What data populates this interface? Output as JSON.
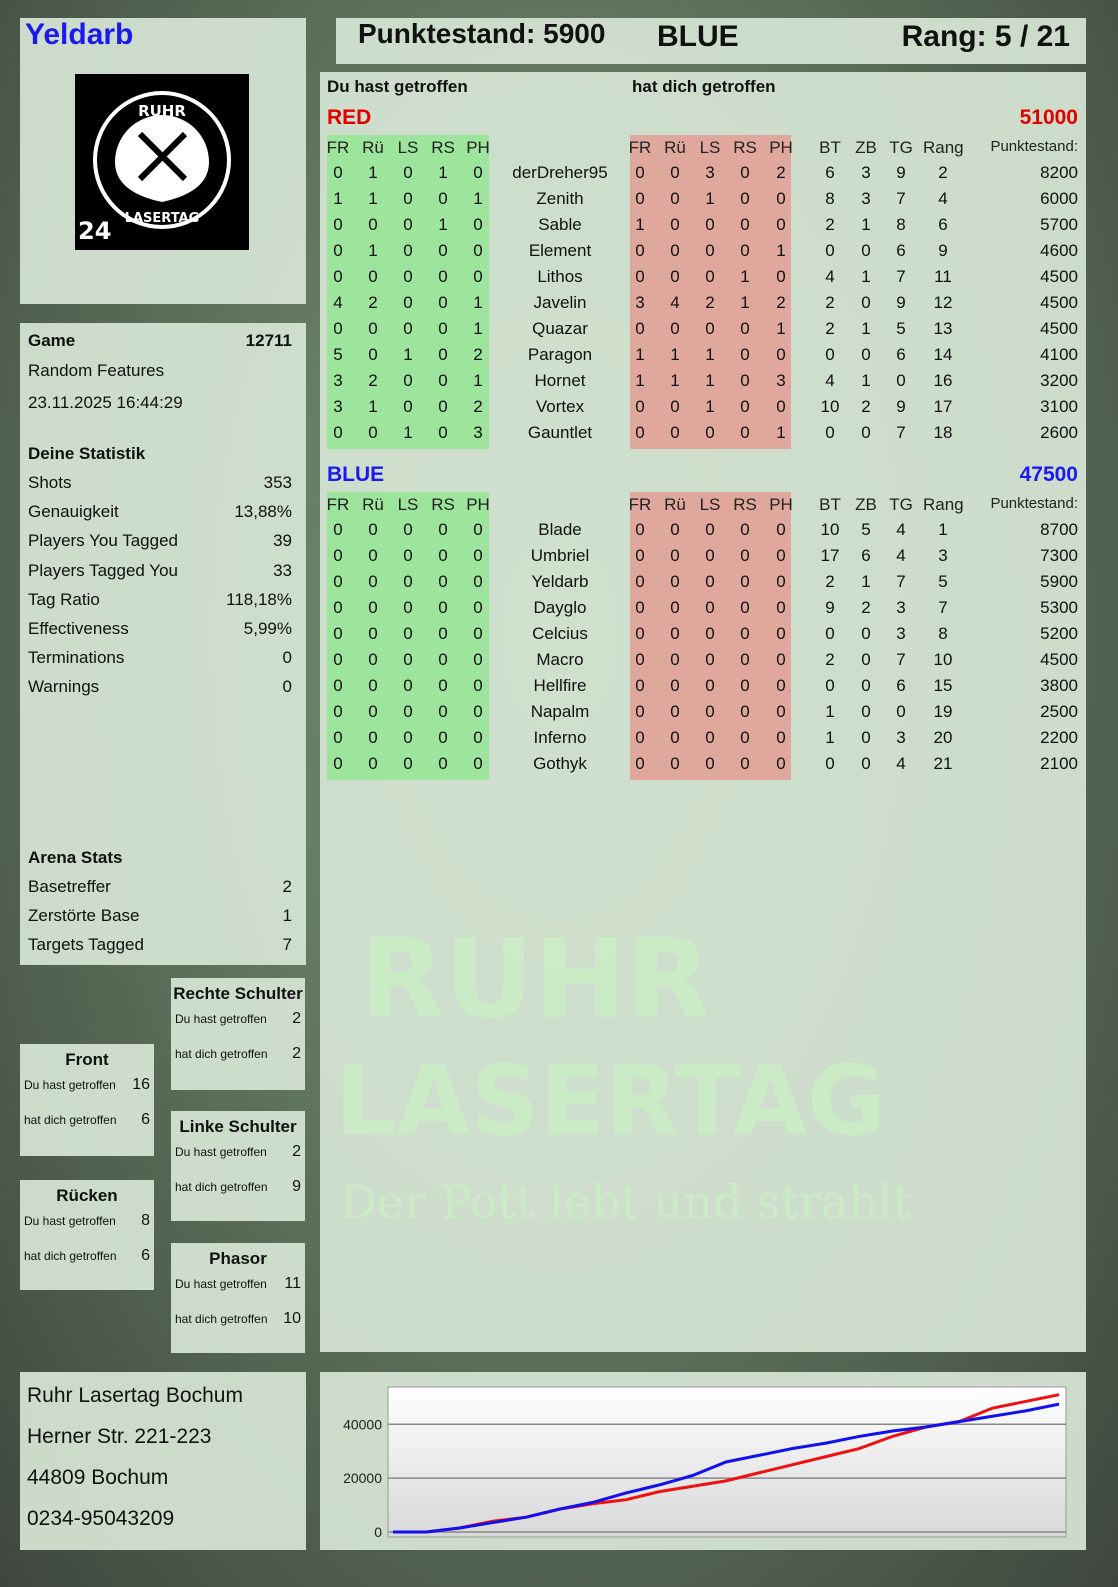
{
  "header": {
    "player": "Yeldarb",
    "score_label": "Punktestand: 5900",
    "team": "BLUE",
    "rank_label": "Rang: 5 / 21"
  },
  "logo": {
    "text": "RUHR LASERTAG",
    "badge": "24"
  },
  "game": {
    "label": "Game",
    "id": "12711",
    "mode": "Random Features",
    "datetime": "23.11.2025 16:44:29"
  },
  "stats": {
    "title": "Deine Statistik",
    "items": [
      {
        "label": "Shots",
        "value": "353"
      },
      {
        "label": "Genauigkeit",
        "value": "13,88%"
      },
      {
        "label": "Players You Tagged",
        "value": "39"
      },
      {
        "label": "Players Tagged You",
        "value": "33"
      },
      {
        "label": "Tag Ratio",
        "value": "118,18%"
      },
      {
        "label": "Effectiveness",
        "value": "5,99%"
      },
      {
        "label": "Terminations",
        "value": "0"
      },
      {
        "label": "Warnings",
        "value": "0"
      }
    ]
  },
  "arena": {
    "title": "Arena Stats",
    "items": [
      {
        "label": "Basetreffer",
        "value": "2"
      },
      {
        "label": "Zerstörte Base",
        "value": "1"
      },
      {
        "label": "Targets Tagged",
        "value": "7"
      }
    ]
  },
  "bodyparts": [
    {
      "title": "Front",
      "hit": "16",
      "got": "6"
    },
    {
      "title": "Rücken",
      "hit": "8",
      "got": "6"
    },
    {
      "title": "Rechte Schulter",
      "hit": "2",
      "got": "2"
    },
    {
      "title": "Linke Schulter",
      "hit": "2",
      "got": "9"
    },
    {
      "title": "Phasor",
      "hit": "11",
      "got": "10"
    }
  ],
  "bp_labels": {
    "hit": "Du hast getroffen",
    "got": "hat dich getroffen"
  },
  "table": {
    "you_hit": "Du hast getroffen",
    "hit_you": "hat dich getroffen",
    "cols_hit": [
      "FR",
      "Rü",
      "LS",
      "RS",
      "PH"
    ],
    "cols_stats": [
      "BT",
      "ZB",
      "TG",
      "Rang",
      "Punktestand:"
    ],
    "teams": [
      {
        "name": "RED",
        "score": "51000",
        "color": "#e00000",
        "players": [
          {
            "name": "derDreher95",
            "you": [
              0,
              1,
              0,
              1,
              0
            ],
            "them": [
              0,
              0,
              3,
              0,
              2
            ],
            "bt": 6,
            "zb": 3,
            "tg": 9,
            "rang": 2,
            "pts": 8200
          },
          {
            "name": "Zenith",
            "you": [
              1,
              1,
              0,
              0,
              1
            ],
            "them": [
              0,
              0,
              1,
              0,
              0
            ],
            "bt": 8,
            "zb": 3,
            "tg": 7,
            "rang": 4,
            "pts": 6000
          },
          {
            "name": "Sable",
            "you": [
              0,
              0,
              0,
              1,
              0
            ],
            "them": [
              1,
              0,
              0,
              0,
              0
            ],
            "bt": 2,
            "zb": 1,
            "tg": 8,
            "rang": 6,
            "pts": 5700
          },
          {
            "name": "Element",
            "you": [
              0,
              1,
              0,
              0,
              0
            ],
            "them": [
              0,
              0,
              0,
              0,
              1
            ],
            "bt": 0,
            "zb": 0,
            "tg": 6,
            "rang": 9,
            "pts": 4600
          },
          {
            "name": "Lithos",
            "you": [
              0,
              0,
              0,
              0,
              0
            ],
            "them": [
              0,
              0,
              0,
              1,
              0
            ],
            "bt": 4,
            "zb": 1,
            "tg": 7,
            "rang": 11,
            "pts": 4500
          },
          {
            "name": "Javelin",
            "you": [
              4,
              2,
              0,
              0,
              1
            ],
            "them": [
              3,
              4,
              2,
              1,
              2
            ],
            "bt": 2,
            "zb": 0,
            "tg": 9,
            "rang": 12,
            "pts": 4500
          },
          {
            "name": "Quazar",
            "you": [
              0,
              0,
              0,
              0,
              1
            ],
            "them": [
              0,
              0,
              0,
              0,
              1
            ],
            "bt": 2,
            "zb": 1,
            "tg": 5,
            "rang": 13,
            "pts": 4500
          },
          {
            "name": "Paragon",
            "you": [
              5,
              0,
              1,
              0,
              2
            ],
            "them": [
              1,
              1,
              1,
              0,
              0
            ],
            "bt": 0,
            "zb": 0,
            "tg": 6,
            "rang": 14,
            "pts": 4100
          },
          {
            "name": "Hornet",
            "you": [
              3,
              2,
              0,
              0,
              1
            ],
            "them": [
              1,
              1,
              1,
              0,
              3
            ],
            "bt": 4,
            "zb": 1,
            "tg": 0,
            "rang": 16,
            "pts": 3200
          },
          {
            "name": "Vortex",
            "you": [
              3,
              1,
              0,
              0,
              2
            ],
            "them": [
              0,
              0,
              1,
              0,
              0
            ],
            "bt": 10,
            "zb": 2,
            "tg": 9,
            "rang": 17,
            "pts": 3100
          },
          {
            "name": "Gauntlet",
            "you": [
              0,
              0,
              1,
              0,
              3
            ],
            "them": [
              0,
              0,
              0,
              0,
              1
            ],
            "bt": 0,
            "zb": 0,
            "tg": 7,
            "rang": 18,
            "pts": 2600
          }
        ]
      },
      {
        "name": "BLUE",
        "score": "47500",
        "color": "#1a1aee",
        "players": [
          {
            "name": "Blade",
            "you": [
              0,
              0,
              0,
              0,
              0
            ],
            "them": [
              0,
              0,
              0,
              0,
              0
            ],
            "bt": 10,
            "zb": 5,
            "tg": 4,
            "rang": 1,
            "pts": 8700
          },
          {
            "name": "Umbriel",
            "you": [
              0,
              0,
              0,
              0,
              0
            ],
            "them": [
              0,
              0,
              0,
              0,
              0
            ],
            "bt": 17,
            "zb": 6,
            "tg": 4,
            "rang": 3,
            "pts": 7300
          },
          {
            "name": "Yeldarb",
            "you": [
              0,
              0,
              0,
              0,
              0
            ],
            "them": [
              0,
              0,
              0,
              0,
              0
            ],
            "bt": 2,
            "zb": 1,
            "tg": 7,
            "rang": 5,
            "pts": 5900
          },
          {
            "name": "Dayglo",
            "you": [
              0,
              0,
              0,
              0,
              0
            ],
            "them": [
              0,
              0,
              0,
              0,
              0
            ],
            "bt": 9,
            "zb": 2,
            "tg": 3,
            "rang": 7,
            "pts": 5300
          },
          {
            "name": "Celcius",
            "you": [
              0,
              0,
              0,
              0,
              0
            ],
            "them": [
              0,
              0,
              0,
              0,
              0
            ],
            "bt": 0,
            "zb": 0,
            "tg": 3,
            "rang": 8,
            "pts": 5200
          },
          {
            "name": "Macro",
            "you": [
              0,
              0,
              0,
              0,
              0
            ],
            "them": [
              0,
              0,
              0,
              0,
              0
            ],
            "bt": 2,
            "zb": 0,
            "tg": 7,
            "rang": 10,
            "pts": 4500
          },
          {
            "name": "Hellfire",
            "you": [
              0,
              0,
              0,
              0,
              0
            ],
            "them": [
              0,
              0,
              0,
              0,
              0
            ],
            "bt": 0,
            "zb": 0,
            "tg": 6,
            "rang": 15,
            "pts": 3800
          },
          {
            "name": "Napalm",
            "you": [
              0,
              0,
              0,
              0,
              0
            ],
            "them": [
              0,
              0,
              0,
              0,
              0
            ],
            "bt": 1,
            "zb": 0,
            "tg": 0,
            "rang": 19,
            "pts": 2500
          },
          {
            "name": "Inferno",
            "you": [
              0,
              0,
              0,
              0,
              0
            ],
            "them": [
              0,
              0,
              0,
              0,
              0
            ],
            "bt": 1,
            "zb": 0,
            "tg": 3,
            "rang": 20,
            "pts": 2200
          },
          {
            "name": "Gothyk",
            "you": [
              0,
              0,
              0,
              0,
              0
            ],
            "them": [
              0,
              0,
              0,
              0,
              0
            ],
            "bt": 0,
            "zb": 0,
            "tg": 4,
            "rang": 21,
            "pts": 2100
          }
        ]
      }
    ]
  },
  "watermark": {
    "line1": "RUHR",
    "line2": "LASERTAG",
    "slogan": "Der Pott lebt und strahlt"
  },
  "address": {
    "lines": [
      "Ruhr Lasertag Bochum",
      "Herner Str. 221-223",
      "44809 Bochum",
      "0234-95043209"
    ]
  },
  "chart_data": {
    "type": "line",
    "ylim": [
      0,
      52000
    ],
    "yticks": [
      "0",
      "20000",
      "40000"
    ],
    "grid": true,
    "series": [
      {
        "color": "#ee1111",
        "values": [
          0,
          0,
          1500,
          4000,
          5500,
          8500,
          10500,
          12000,
          15000,
          17000,
          19000,
          22000,
          25000,
          28000,
          31000,
          35500,
          39000,
          41000,
          46000,
          48500,
          51000
        ]
      },
      {
        "color": "#1111ee",
        "values": [
          0,
          0,
          1500,
          3500,
          5500,
          8500,
          11000,
          14500,
          17500,
          21000,
          26000,
          28500,
          31000,
          33000,
          35500,
          37500,
          39000,
          41000,
          43000,
          45000,
          47500
        ]
      }
    ]
  }
}
